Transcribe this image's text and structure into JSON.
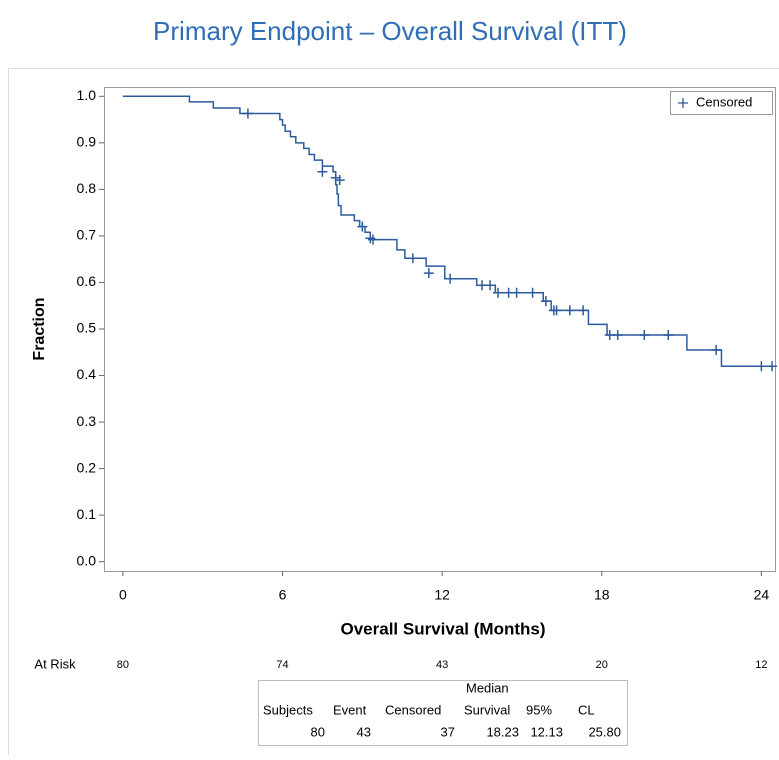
{
  "chart_data": {
    "type": "km",
    "title": "Primary Endpoint – Overall Survival (ITT)",
    "x_label": "Overall Survival (Months)",
    "y_label": "Fraction",
    "xlim": [
      -0.71,
      24.55
    ],
    "ylim": [
      -0.02,
      1.02
    ],
    "xticks": [
      0,
      6,
      12,
      18,
      24
    ],
    "yticks": [
      {
        "value": 0,
        "label": "0.0"
      },
      0.1,
      0.2,
      0.3,
      0.4,
      0.5,
      0.6,
      0.7,
      0.8,
      0.9,
      {
        "value": 1,
        "label": "1.0"
      }
    ],
    "series": [
      {
        "color": "#2b5b9e",
        "x": [
          0,
          2.5,
          3.4,
          4.4,
          5.9,
          6.0,
          6.1,
          6.3,
          6.5,
          6.8,
          7.0,
          7.2,
          7.5,
          7.9,
          8.0,
          8.05,
          8.1,
          8.2,
          8.7,
          8.9,
          9.1,
          9.3,
          10.3,
          10.6,
          11.4,
          12.1,
          13.3,
          14.0,
          15.8,
          16.1,
          17.5,
          18.2,
          21.2,
          22.5,
          24.55
        ],
        "y": [
          1.0,
          0.988,
          0.975,
          0.963,
          0.95,
          0.938,
          0.925,
          0.913,
          0.9,
          0.888,
          0.875,
          0.863,
          0.85,
          0.838,
          0.81,
          0.79,
          0.765,
          0.745,
          0.733,
          0.72,
          0.708,
          0.692,
          0.67,
          0.652,
          0.635,
          0.608,
          0.594,
          0.578,
          0.56,
          0.54,
          0.51,
          0.487,
          0.455,
          0.42,
          0.42
        ]
      }
    ],
    "censored": {
      "name": "Censored",
      "color": "#2b5b9e",
      "x": [
        4.7,
        7.5,
        8.0,
        8.15,
        9.0,
        9.3,
        9.4,
        10.9,
        11.5,
        12.3,
        13.5,
        13.8,
        14.1,
        14.5,
        14.8,
        15.4,
        15.9,
        16.2,
        16.3,
        16.8,
        17.3,
        18.3,
        18.6,
        19.6,
        20.5,
        22.3,
        24.0,
        24.4
      ],
      "y": [
        0.963,
        0.838,
        0.825,
        0.82,
        0.72,
        0.695,
        0.692,
        0.652,
        0.62,
        0.608,
        0.594,
        0.594,
        0.578,
        0.578,
        0.578,
        0.578,
        0.56,
        0.54,
        0.54,
        0.54,
        0.54,
        0.487,
        0.487,
        0.487,
        0.487,
        0.455,
        0.42,
        0.42
      ]
    },
    "at_risk": {
      "label": "At Risk",
      "values": [
        80,
        74,
        43,
        20,
        12
      ]
    },
    "summary_table": {
      "column_group": "Median",
      "columns": [
        "Subjects",
        "Event",
        "Censored",
        "Survival",
        "95%",
        "CL"
      ],
      "row": [
        "80",
        "43",
        "37",
        "18.23",
        "12.13",
        "25.80"
      ]
    }
  }
}
